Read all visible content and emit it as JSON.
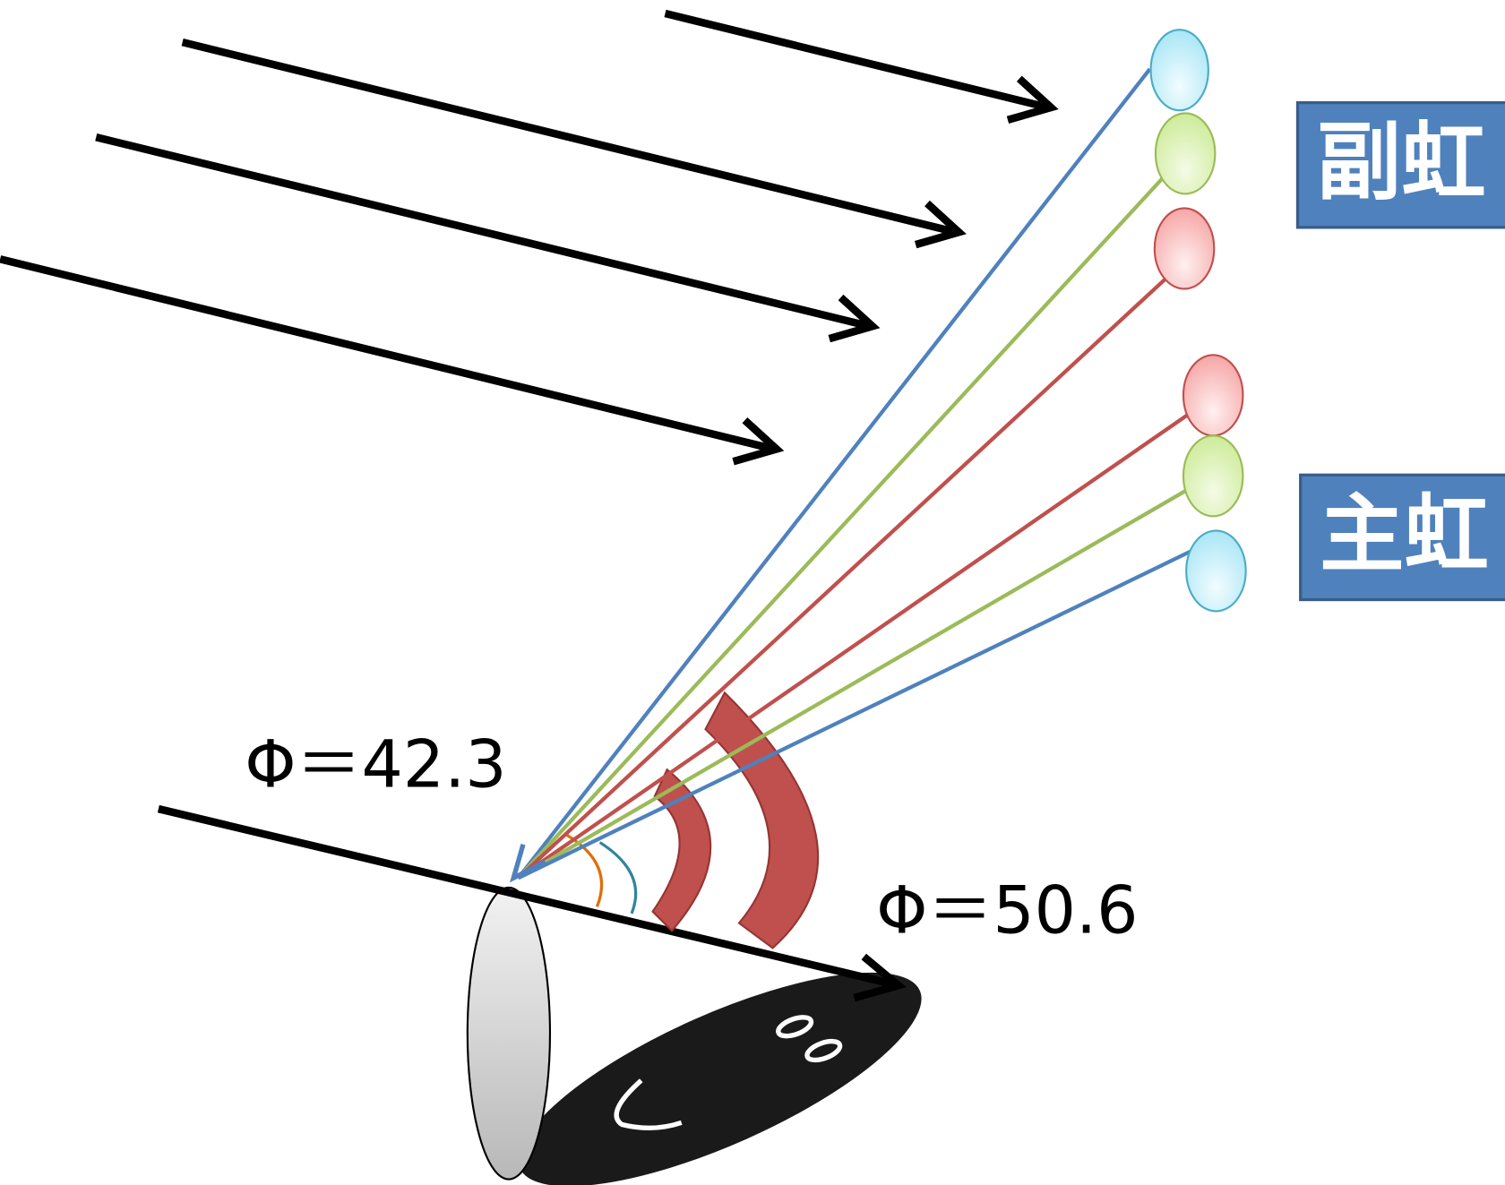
{
  "labels": {
    "secondary_rainbow": "副虹",
    "primary_rainbow": "主虹",
    "angle_primary": "Φ＝42.3",
    "angle_secondary": "Φ＝50.6"
  }
}
